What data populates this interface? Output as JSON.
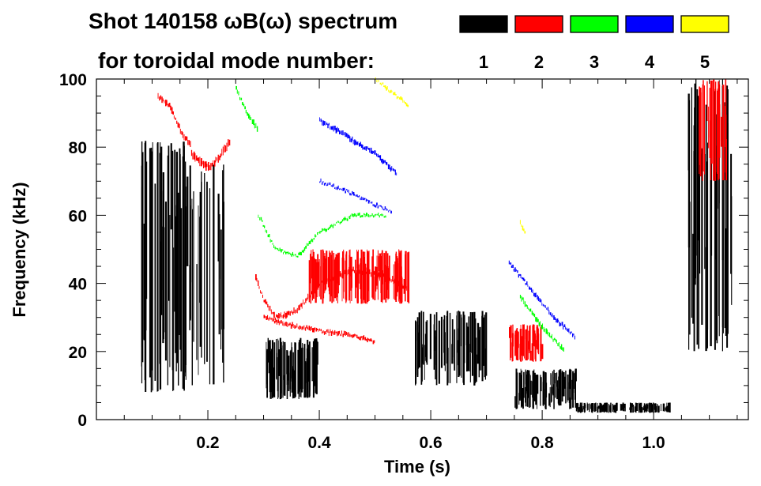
{
  "chart_data": {
    "type": "heatmap",
    "title_line1": "Shot 140158 ωB(ω) spectrum",
    "title_line2": "for toroidal mode number:",
    "xlabel": "Time (s)",
    "ylabel": "Frequency (kHz)",
    "xlim": [
      0.0,
      1.17
    ],
    "ylim": [
      0,
      100
    ],
    "x_ticks": [
      0.2,
      0.4,
      0.6,
      0.8,
      1.0
    ],
    "x_tick_labels": [
      "0.2",
      "0.4",
      "0.6",
      "0.8",
      "1.0"
    ],
    "y_ticks": [
      0,
      20,
      40,
      60,
      80,
      100
    ],
    "y_tick_labels": [
      "0",
      "20",
      "40",
      "60",
      "80",
      "100"
    ],
    "legend": [
      {
        "mode": "1",
        "color": "#000000"
      },
      {
        "mode": "2",
        "color": "#ff0000"
      },
      {
        "mode": "3",
        "color": "#00ff00"
      },
      {
        "mode": "4",
        "color": "#0000ff"
      },
      {
        "mode": "5",
        "color": "#ffff00"
      }
    ],
    "features": [
      {
        "mode": 1,
        "kind": "band",
        "t": [
          0.08,
          0.16
        ],
        "f": [
          8,
          82
        ],
        "density": 0.55
      },
      {
        "mode": 1,
        "kind": "band",
        "t": [
          0.16,
          0.23
        ],
        "f": [
          10,
          75
        ],
        "density": 0.3
      },
      {
        "mode": 1,
        "kind": "band",
        "t": [
          0.3,
          0.4
        ],
        "f": [
          6,
          24
        ],
        "density": 0.8
      },
      {
        "mode": 1,
        "kind": "band",
        "t": [
          0.57,
          0.7
        ],
        "f": [
          10,
          32
        ],
        "density": 0.5
      },
      {
        "mode": 1,
        "kind": "band",
        "t": [
          0.75,
          0.86
        ],
        "f": [
          3,
          15
        ],
        "density": 0.7
      },
      {
        "mode": 1,
        "kind": "band",
        "t": [
          0.86,
          1.03
        ],
        "f": [
          2,
          5
        ],
        "density": 0.7
      },
      {
        "mode": 1,
        "kind": "band",
        "t": [
          1.06,
          1.14
        ],
        "f": [
          20,
          100
        ],
        "density": 0.45
      },
      {
        "mode": 2,
        "kind": "trace",
        "points": [
          [
            0.11,
            95
          ],
          [
            0.13,
            92
          ],
          [
            0.15,
            85
          ],
          [
            0.17,
            80
          ]
        ],
        "width": 6
      },
      {
        "mode": 2,
        "kind": "trace",
        "points": [
          [
            0.17,
            78
          ],
          [
            0.2,
            74
          ],
          [
            0.22,
            77
          ],
          [
            0.24,
            82
          ]
        ],
        "width": 8
      },
      {
        "mode": 2,
        "kind": "trace",
        "points": [
          [
            0.285,
            42
          ],
          [
            0.3,
            35
          ],
          [
            0.32,
            30
          ],
          [
            0.36,
            32
          ],
          [
            0.4,
            40
          ],
          [
            0.46,
            44
          ],
          [
            0.52,
            42
          ],
          [
            0.56,
            38
          ]
        ],
        "width": 5
      },
      {
        "mode": 2,
        "kind": "band",
        "t": [
          0.38,
          0.56
        ],
        "f": [
          34,
          50
        ],
        "density": 0.75
      },
      {
        "mode": 2,
        "kind": "trace",
        "points": [
          [
            0.3,
            30
          ],
          [
            0.34,
            28
          ],
          [
            0.4,
            26
          ],
          [
            0.45,
            25
          ],
          [
            0.5,
            23
          ]
        ],
        "width": 4
      },
      {
        "mode": 2,
        "kind": "band",
        "t": [
          0.74,
          0.8
        ],
        "f": [
          17,
          28
        ],
        "density": 0.8
      },
      {
        "mode": 2,
        "kind": "band",
        "t": [
          1.08,
          1.13
        ],
        "f": [
          70,
          100
        ],
        "density": 0.5
      },
      {
        "mode": 3,
        "kind": "trace",
        "points": [
          [
            0.25,
            97
          ],
          [
            0.27,
            90
          ],
          [
            0.29,
            85
          ]
        ],
        "width": 5
      },
      {
        "mode": 3,
        "kind": "trace",
        "points": [
          [
            0.29,
            60
          ],
          [
            0.32,
            50
          ],
          [
            0.36,
            48
          ],
          [
            0.4,
            55
          ],
          [
            0.46,
            60
          ],
          [
            0.52,
            60
          ]
        ],
        "width": 3
      },
      {
        "mode": 3,
        "kind": "trace",
        "points": [
          [
            0.76,
            36
          ],
          [
            0.8,
            27
          ],
          [
            0.84,
            20
          ]
        ],
        "width": 5
      },
      {
        "mode": 4,
        "kind": "trace",
        "points": [
          [
            0.4,
            88
          ],
          [
            0.45,
            83
          ],
          [
            0.5,
            78
          ],
          [
            0.54,
            72
          ]
        ],
        "width": 5
      },
      {
        "mode": 4,
        "kind": "trace",
        "points": [
          [
            0.4,
            70
          ],
          [
            0.45,
            67
          ],
          [
            0.5,
            63
          ],
          [
            0.53,
            61
          ]
        ],
        "width": 3
      },
      {
        "mode": 4,
        "kind": "trace",
        "points": [
          [
            0.74,
            46
          ],
          [
            0.78,
            38
          ],
          [
            0.82,
            30
          ],
          [
            0.86,
            24
          ]
        ],
        "width": 4
      },
      {
        "mode": 5,
        "kind": "trace",
        "points": [
          [
            0.5,
            100
          ],
          [
            0.53,
            96
          ],
          [
            0.56,
            92
          ]
        ],
        "width": 3
      },
      {
        "mode": 5,
        "kind": "trace",
        "points": [
          [
            0.76,
            58
          ],
          [
            0.77,
            54
          ]
        ],
        "width": 4
      }
    ]
  }
}
